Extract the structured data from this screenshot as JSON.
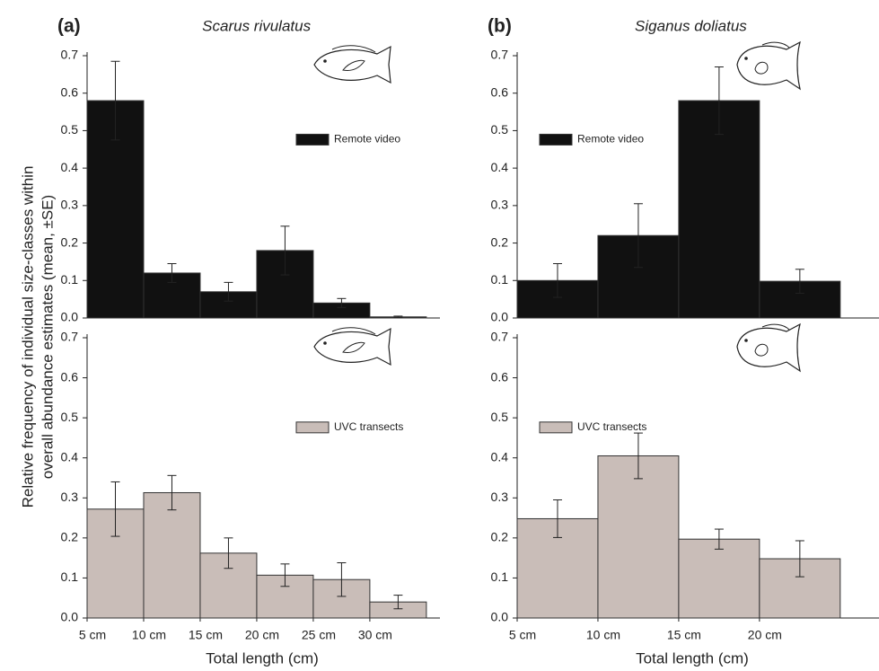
{
  "y_label": [
    "Relative frequency of individual size-classes within",
    "overall abundance estimates (mean, ±SE)"
  ],
  "chart_data": [
    {
      "type": "histogram",
      "panel_label": "(a)",
      "title": "Scarus rivulatus",
      "bins": [
        5,
        10,
        15,
        20,
        25,
        30,
        35
      ],
      "xlim": [
        5,
        36.2
      ],
      "ylim": [
        0,
        0.7
      ],
      "yticks": [
        {
          "value": 0,
          "label": "0.0"
        },
        0.1,
        0.2,
        0.3,
        0.4,
        0.5,
        0.6,
        0.7
      ],
      "legend": "right",
      "series": [
        {
          "name": "Remote video",
          "color": "#111111",
          "values": [
            0.58,
            0.12,
            0.07,
            0.18,
            0.04,
            0.003
          ],
          "errors": [
            0.105,
            0.025,
            0.025,
            0.065,
            0.012,
            0.002
          ]
        }
      ]
    },
    {
      "type": "histogram",
      "panel_label": "(b)",
      "title": "Siganus doliatus",
      "bins": [
        5,
        10,
        15,
        20,
        25
      ],
      "xlim": [
        5,
        27.4
      ],
      "ylim": [
        0,
        0.7
      ],
      "yticks": [
        {
          "value": 0,
          "label": "0.0"
        },
        0.1,
        0.2,
        0.3,
        0.4,
        0.5,
        0.6,
        0.7
      ],
      "legend": "left",
      "series": [
        {
          "name": "Remote video",
          "color": "#111111",
          "values": [
            0.1,
            0.22,
            0.58,
            0.098
          ],
          "errors": [
            0.045,
            0.085,
            0.09,
            0.032
          ]
        }
      ]
    },
    {
      "type": "histogram",
      "x_label": "Total length (cm)",
      "bins": [
        5,
        10,
        15,
        20,
        25,
        30,
        35
      ],
      "xlim": [
        5,
        36.2
      ],
      "xticks": [
        {
          "value": 5,
          "label": "5 cm"
        },
        {
          "value": 10,
          "label": "10 cm"
        },
        {
          "value": 15,
          "label": "15 cm"
        },
        {
          "value": 20,
          "label": "20 cm"
        },
        {
          "value": 25,
          "label": "25 cm"
        },
        {
          "value": 30,
          "label": "30 cm"
        }
      ],
      "ylim": [
        0,
        0.7
      ],
      "yticks": [
        {
          "value": 0,
          "label": "0.0"
        },
        0.1,
        0.2,
        0.3,
        0.4,
        0.5,
        0.6,
        0.7
      ],
      "legend": "right",
      "series": [
        {
          "name": "UVC transects",
          "color": "#c9bdb8",
          "values": [
            0.272,
            0.313,
            0.162,
            0.107,
            0.096,
            0.04
          ],
          "errors": [
            0.068,
            0.043,
            0.038,
            0.028,
            0.042,
            0.017
          ]
        }
      ]
    },
    {
      "type": "histogram",
      "x_label": "Total length (cm)",
      "bins": [
        5,
        10,
        15,
        20,
        25
      ],
      "xlim": [
        5,
        27.4
      ],
      "xticks": [
        {
          "value": 5,
          "label": "5 cm"
        },
        {
          "value": 10,
          "label": "10 cm"
        },
        {
          "value": 15,
          "label": "15 cm"
        },
        {
          "value": 20,
          "label": "20 cm"
        }
      ],
      "ylim": [
        0,
        0.7
      ],
      "yticks": [
        {
          "value": 0,
          "label": "0.0"
        },
        0.1,
        0.2,
        0.3,
        0.4,
        0.5,
        0.6,
        0.7
      ],
      "legend": "left",
      "series": [
        {
          "name": "UVC transects",
          "color": "#c9bdb8",
          "values": [
            0.248,
            0.405,
            0.197,
            0.148
          ],
          "errors": [
            0.047,
            0.057,
            0.025,
            0.045
          ]
        }
      ]
    }
  ]
}
